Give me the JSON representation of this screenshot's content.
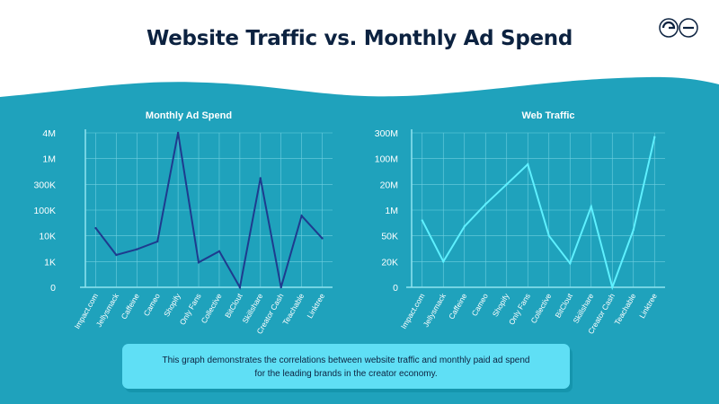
{
  "page": {
    "title": "Website Traffic vs. Monthly Ad Spend",
    "caption_line1": "This graph demonstrates the correlations between website traffic and monthly paid ad spend",
    "caption_line2": "for the leading brands in the creator economy.",
    "background_color": "#1fa2bc",
    "title_color": "#0c2240"
  },
  "chart_data": [
    {
      "type": "line",
      "title": "Monthly Ad Spend",
      "xlabel": "",
      "ylabel": "",
      "scale": "categorical-log",
      "categories": [
        "Impact.com",
        "Jellysmack",
        "Caffeine",
        "Cameo",
        "Shopify",
        "Only Fans",
        "Collective",
        "BitClout",
        "Skillshare",
        "Creator Cash",
        "Teachable",
        "Linktree"
      ],
      "y_ticks": [
        "0",
        "1K",
        "10K",
        "100K",
        "300K",
        "1M",
        "4M"
      ],
      "series": [
        {
          "color": "#1e3b8e",
          "values": [
            20000,
            1800,
            3000,
            6000,
            4000000,
            800,
            2500,
            0,
            400000,
            0,
            60000,
            8000
          ]
        }
      ],
      "grid": true,
      "legend": "none"
    },
    {
      "type": "line",
      "title": "Web Traffic",
      "xlabel": "",
      "ylabel": "",
      "scale": "categorical-log",
      "categories": [
        "Impact.com",
        "Jellysmack",
        "Caffeine",
        "Cameo",
        "Shopify",
        "Only Fans",
        "Collective",
        "BitClout",
        "Skillshare",
        "Creator Cash",
        "Teachable",
        "Linktree"
      ],
      "y_ticks": [
        "0",
        "20K",
        "50K",
        "1M",
        "20M",
        "100M",
        "300M"
      ],
      "series": [
        {
          "color": "#5ef0ff",
          "values": [
            300000,
            20000,
            150000,
            2000000,
            20000000,
            70000000,
            50000,
            10000,
            1500000,
            0,
            100000,
            250000000
          ]
        }
      ],
      "grid": true,
      "legend": "none"
    }
  ]
}
